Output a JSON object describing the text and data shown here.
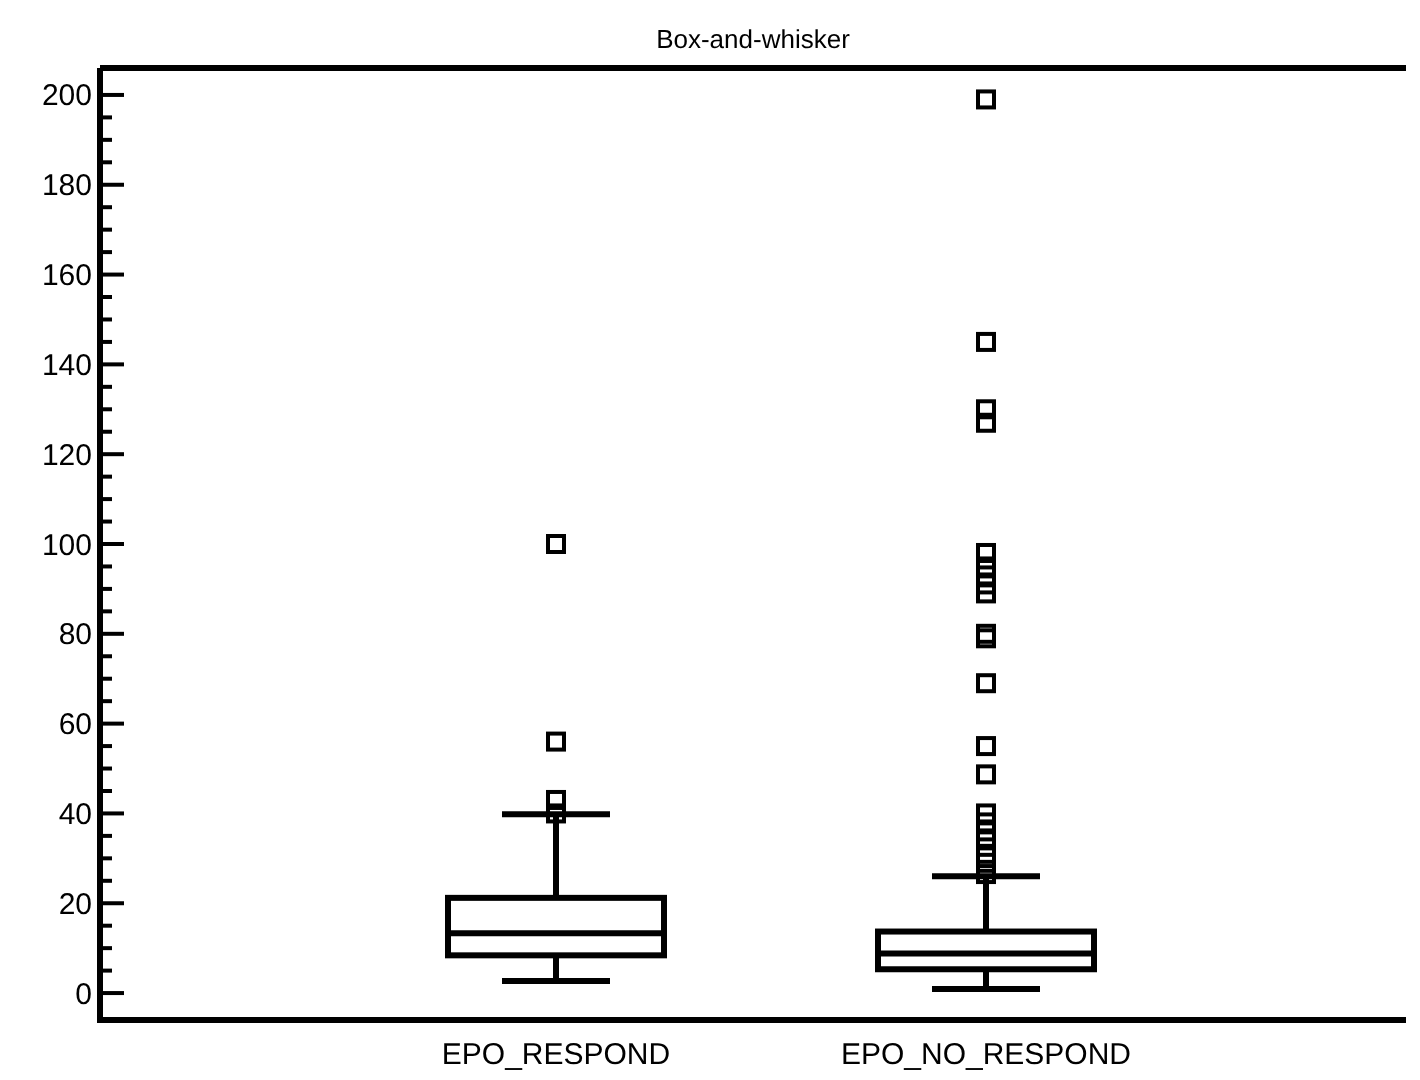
{
  "chart_data": {
    "type": "box",
    "title": "Box-and-whisker",
    "categories": [
      "EPO_RESPOND",
      "EPO_NO_RESPOND"
    ],
    "boxes": [
      {
        "low": 2.7,
        "q1": 8.4,
        "median": 13.3,
        "q3": 21.2,
        "high": 39.8,
        "outliers": [
          40,
          43,
          56,
          100
        ]
      },
      {
        "low": 0.9,
        "q1": 5.3,
        "median": 8.8,
        "q3": 13.7,
        "high": 26,
        "outliers": [
          26.5,
          29,
          31,
          34,
          36,
          38,
          40,
          48.7,
          55,
          69,
          79,
          80,
          89,
          91,
          93,
          95,
          98,
          127,
          130,
          145,
          199
        ]
      }
    ],
    "color": "#000000",
    "marker": "square",
    "grid": false,
    "ylim": [
      -6,
      206
    ],
    "yticks": [
      0,
      {
        "value": 5,
        "label": null
      },
      {
        "value": 10,
        "label": null
      },
      {
        "value": 15,
        "label": null
      },
      20,
      {
        "value": 25,
        "label": null
      },
      {
        "value": 30,
        "label": null
      },
      {
        "value": 35,
        "label": null
      },
      40,
      {
        "value": 45,
        "label": null
      },
      {
        "value": 50,
        "label": null
      },
      {
        "value": 55,
        "label": null
      },
      60,
      {
        "value": 65,
        "label": null
      },
      {
        "value": 70,
        "label": null
      },
      {
        "value": 75,
        "label": null
      },
      80,
      {
        "value": 85,
        "label": null
      },
      {
        "value": 90,
        "label": null
      },
      {
        "value": 95,
        "label": null
      },
      100,
      {
        "value": 105,
        "label": null
      },
      {
        "value": 110,
        "label": null
      },
      {
        "value": 115,
        "label": null
      },
      120,
      {
        "value": 125,
        "label": null
      },
      {
        "value": 130,
        "label": null
      },
      {
        "value": 135,
        "label": null
      },
      140,
      {
        "value": 145,
        "label": null
      },
      {
        "value": 150,
        "label": null
      },
      {
        "value": 155,
        "label": null
      },
      160,
      {
        "value": 165,
        "label": null
      },
      {
        "value": 170,
        "label": null
      },
      {
        "value": 175,
        "label": null
      },
      180,
      {
        "value": 185,
        "label": null
      },
      {
        "value": 190,
        "label": null
      },
      {
        "value": 195,
        "label": null
      },
      200
    ]
  }
}
